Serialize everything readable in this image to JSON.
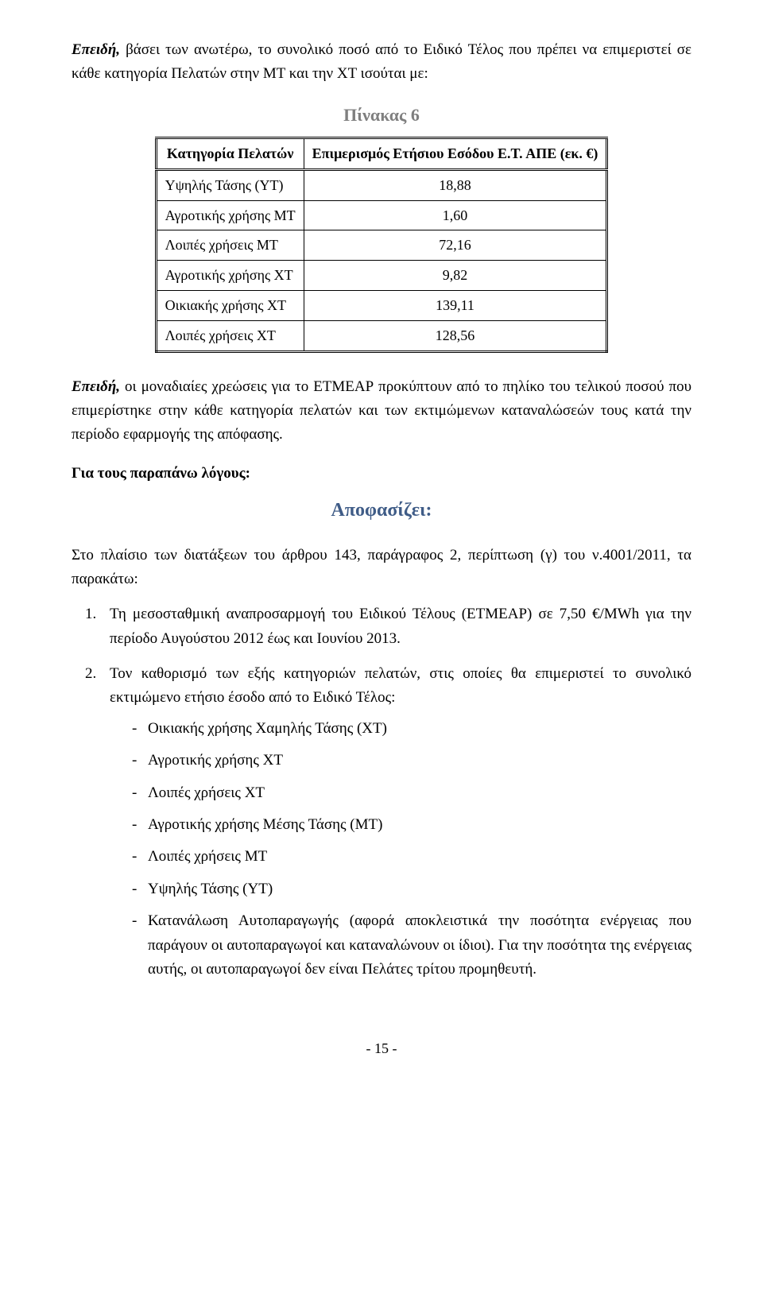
{
  "para1_prefix": "Επειδή,",
  "para1_rest": " βάσει των ανωτέρω, το συνολικό ποσό από το Ειδικό Τέλος που πρέπει να επιμεριστεί σε κάθε κατηγορία Πελατών στην ΜΤ και την ΧΤ ισούται με:",
  "table_caption": "Πίνακας 6",
  "table": {
    "header_left": "Κατηγορία Πελατών",
    "header_right": "Επιμερισμός Ετήσιου Εσόδου Ε.Τ. ΑΠΕ (εκ. €)",
    "rows": [
      {
        "label": "Υψηλής Τάσης (ΥΤ)",
        "value": "18,88"
      },
      {
        "label": "Αγροτικής χρήσης ΜΤ",
        "value": "1,60"
      },
      {
        "label": "Λοιπές χρήσεις ΜΤ",
        "value": "72,16"
      },
      {
        "label": "Αγροτικής χρήσης ΧΤ",
        "value": "9,82"
      },
      {
        "label": "Οικιακής χρήσης ΧΤ",
        "value": "139,11"
      },
      {
        "label": "Λοιπές χρήσεις ΧΤ",
        "value": "128,56"
      }
    ]
  },
  "para2_prefix": "Επειδή,",
  "para2_rest": " οι μοναδιαίες χρεώσεις για το ΕΤΜΕΑΡ προκύπτουν από το πηλίκο του τελικού ποσού που επιμερίστηκε στην κάθε κατηγορία πελατών και των εκτιμώμενων καταναλώσεών τους κατά την περίοδο εφαρμογής της απόφασης.",
  "reasons_label": "Για τους παραπάνω λόγους:",
  "decides": "Αποφασίζει:",
  "intro3": "Στο πλαίσιο των διατάξεων του άρθρου 143, παράγραφος 2, περίπτωση (γ) του ν.4001/2011, τα παρακάτω:",
  "li1": "Τη μεσοσταθμική αναπροσαρμογή του Ειδικού Τέλους (ΕΤΜΕΑΡ) σε 7,50 €/MWh για την περίοδο Αυγούστου 2012 έως και Ιουνίου 2013.",
  "li2": "Τον καθορισμό των εξής κατηγοριών πελατών, στις οποίες θα επιμεριστεί το συνολικό εκτιμώμενο ετήσιο έσοδο από το Ειδικό Τέλος:",
  "bullets": [
    "Οικιακής χρήσης Χαμηλής Τάσης (ΧΤ)",
    "Αγροτικής χρήσης ΧΤ",
    "Λοιπές χρήσεις ΧΤ",
    "Αγροτικής χρήσης Μέσης Τάσης (ΜΤ)",
    "Λοιπές χρήσεις ΜΤ",
    "Υψηλής Τάσης (ΥΤ)",
    "Κατανάλωση Αυτοπαραγωγής (αφορά αποκλειστικά την ποσότητα ενέργειας που παράγουν οι αυτοπαραγωγοί και καταναλώνουν οι ίδιοι). Για την ποσότητα της ενέργειας αυτής, οι αυτοπαραγωγοί δεν είναι Πελάτες τρίτου προμηθευτή."
  ],
  "page_number": "- 15 -"
}
